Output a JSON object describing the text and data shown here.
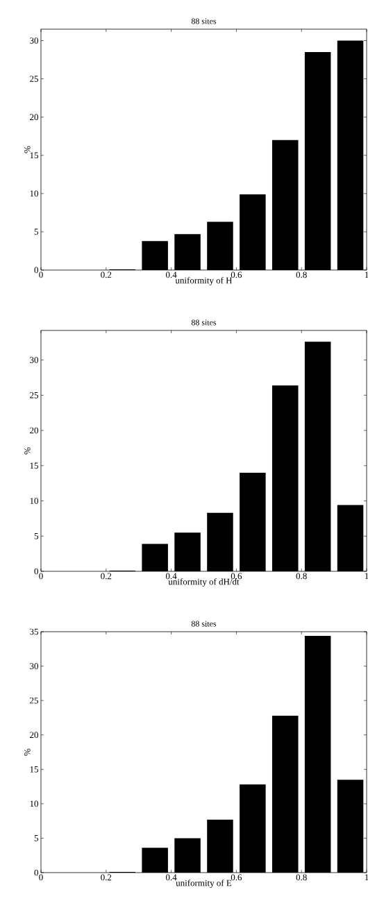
{
  "chart_data": [
    {
      "type": "histogram",
      "title": "88 sites",
      "xlabel": "uniformity of H",
      "ylabel": "%",
      "bins": [
        0,
        0.1,
        0.2,
        0.3,
        0.4,
        0.5,
        0.6,
        0.7,
        0.8,
        0.9,
        1
      ],
      "values": [
        0,
        0,
        0.1,
        3.8,
        4.7,
        6.3,
        9.9,
        17.0,
        28.5,
        30.0
      ],
      "color": "#000000",
      "xlim": [
        0,
        1
      ],
      "ylim": [
        0,
        31.5
      ],
      "xticks": [
        0,
        0.2,
        0.4,
        0.6,
        0.8,
        1
      ],
      "yticks": [
        0,
        5,
        10,
        15,
        20,
        25,
        30
      ]
    },
    {
      "type": "histogram",
      "title": "88 sites",
      "xlabel": "uniformity of dH/dt",
      "ylabel": "%",
      "bins": [
        0,
        0.1,
        0.2,
        0.3,
        0.4,
        0.5,
        0.6,
        0.7,
        0.8,
        0.9,
        1
      ],
      "values": [
        0,
        0,
        0.1,
        3.9,
        5.5,
        8.3,
        14.0,
        26.4,
        32.6,
        9.4
      ],
      "color": "#000000",
      "xlim": [
        0,
        1
      ],
      "ylim": [
        0,
        34.2
      ],
      "xticks": [
        0,
        0.2,
        0.4,
        0.6,
        0.8,
        1
      ],
      "yticks": [
        0,
        5,
        10,
        15,
        20,
        25,
        30
      ]
    },
    {
      "type": "histogram",
      "title": "88 sites",
      "xlabel": "uniformity of E",
      "ylabel": "%",
      "bins": [
        0,
        0.1,
        0.2,
        0.3,
        0.4,
        0.5,
        0.6,
        0.7,
        0.8,
        0.9,
        1
      ],
      "values": [
        0,
        0,
        0.1,
        3.6,
        5.0,
        7.7,
        12.8,
        22.8,
        34.4,
        13.5
      ],
      "color": "#000000",
      "xlim": [
        0,
        1
      ],
      "ylim": [
        0,
        35
      ],
      "xticks": [
        0,
        0.2,
        0.4,
        0.6,
        0.8,
        1
      ],
      "yticks": [
        0,
        5,
        10,
        15,
        20,
        25,
        30,
        35
      ]
    }
  ]
}
